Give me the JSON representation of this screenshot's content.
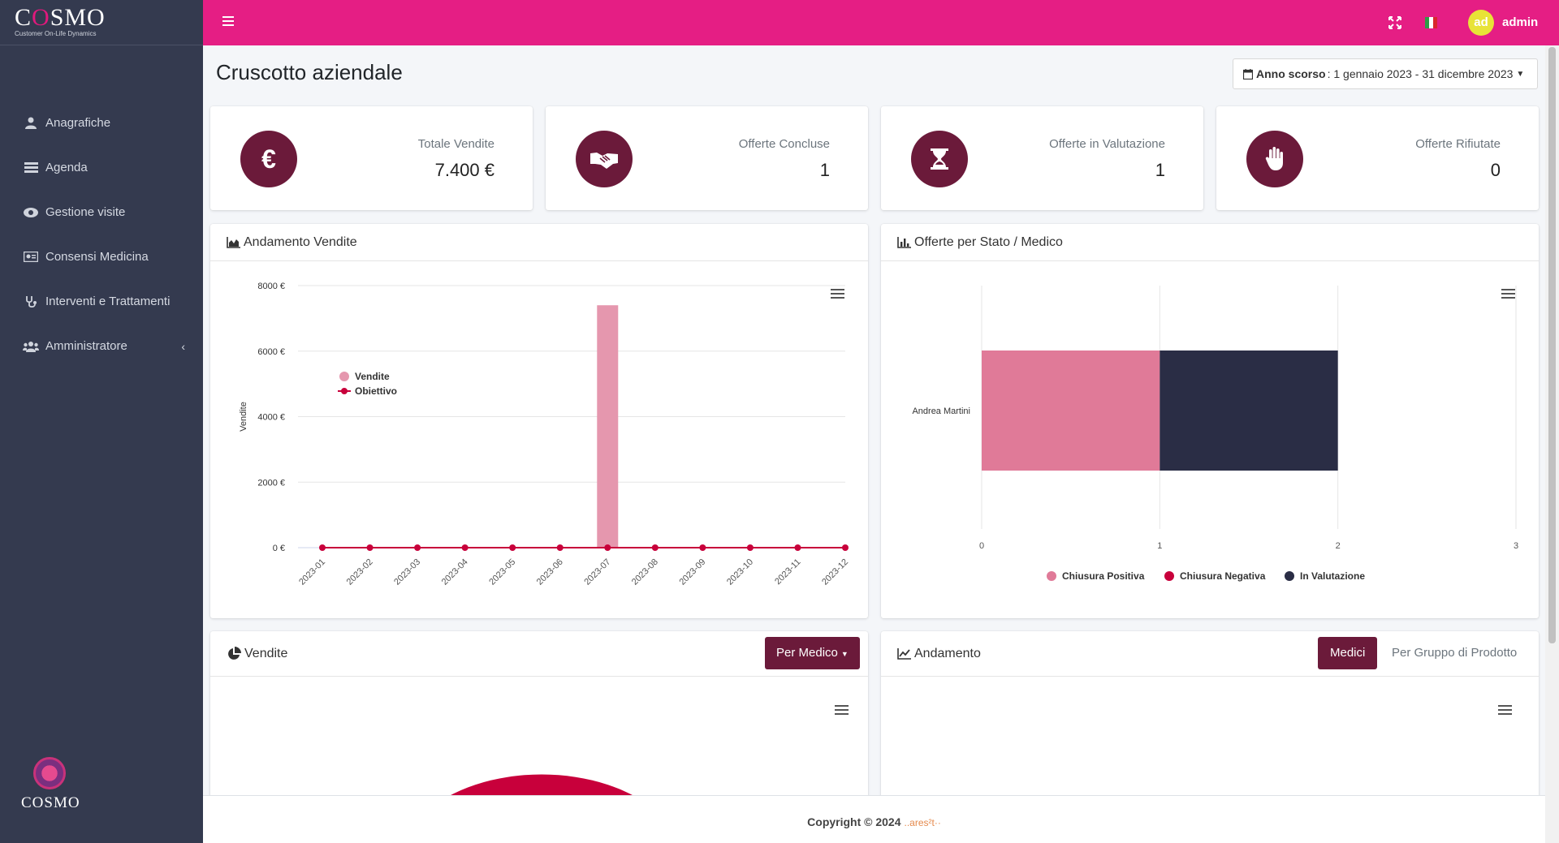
{
  "brand": {
    "name_left": "C",
    "name_o": "O",
    "name_right": "SMO",
    "subtitle": "Customer On-Life Dynamics",
    "footer_logo_text": "COSMO"
  },
  "sidebar": {
    "items": [
      {
        "label": "Anagrafiche",
        "icon": "user-icon"
      },
      {
        "label": "Agenda",
        "icon": "list-icon"
      },
      {
        "label": "Gestione visite",
        "icon": "eye-icon"
      },
      {
        "label": "Consensi Medicina",
        "icon": "id-card-icon"
      },
      {
        "label": "Interventi e Trattamenti",
        "icon": "stethoscope-icon"
      },
      {
        "label": "Amministratore",
        "icon": "users-icon"
      }
    ]
  },
  "header": {
    "avatar_initials": "ad",
    "user": "admin"
  },
  "page": {
    "title": "Cruscotto aziendale",
    "range_label": "Anno scorso",
    "range_value": ": 1 gennaio 2023 - 31 dicembre 2023"
  },
  "stats": [
    {
      "label": "Totale Vendite",
      "value": "7.400 €",
      "icon": "euro-icon"
    },
    {
      "label": "Offerte Concluse",
      "value": "1",
      "icon": "handshake-icon"
    },
    {
      "label": "Offerte in Valutazione",
      "value": "1",
      "icon": "hourglass-icon"
    },
    {
      "label": "Offerte Rifiutate",
      "value": "0",
      "icon": "hand-stop-icon"
    }
  ],
  "panels": {
    "sales_trend": "Andamento Vendite",
    "offers_by_status": "Offerte per Stato / Medico",
    "sales": "Vendite",
    "sales_dropdown": "Per Medico",
    "trend": "Andamento",
    "trend_tab_active": "Medici",
    "trend_tab_other": "Per Gruppo di Prodotto"
  },
  "colors": {
    "accent": "#e51e84",
    "dark": "#6b1a3a",
    "sidebar": "#343a4f",
    "bar_pink": "#e597ae",
    "line_red": "#c8003b",
    "positive": "#e07a98",
    "negative": "#c8003b",
    "evaluation": "#2a2d45"
  },
  "chart_data": [
    {
      "type": "bar",
      "title": "Andamento Vendite",
      "ylabel": "Vendite",
      "categories": [
        "2023-01",
        "2023-02",
        "2023-03",
        "2023-04",
        "2023-05",
        "2023-06",
        "2023-07",
        "2023-08",
        "2023-09",
        "2023-10",
        "2023-11",
        "2023-12"
      ],
      "series": [
        {
          "name": "Vendite",
          "kind": "bar",
          "values": [
            0,
            0,
            0,
            0,
            0,
            0,
            7400,
            0,
            0,
            0,
            0,
            0
          ]
        },
        {
          "name": "Obiettivo",
          "kind": "line",
          "values": [
            0,
            0,
            0,
            0,
            0,
            0,
            0,
            0,
            0,
            0,
            0,
            0
          ]
        }
      ],
      "yticks": [
        "0 €",
        "2000 €",
        "4000 €",
        "6000 €",
        "8000 €"
      ],
      "ylim": [
        0,
        8000
      ],
      "legend": "top-left",
      "grid": true
    },
    {
      "type": "bar",
      "orientation": "horizontal",
      "stacked": true,
      "title": "Offerte per Stato / Medico",
      "categories": [
        "Andrea Martini"
      ],
      "series": [
        {
          "name": "Chiusura Positiva",
          "values": [
            1
          ]
        },
        {
          "name": "Chiusura Negativa",
          "values": [
            0
          ]
        },
        {
          "name": "In Valutazione",
          "values": [
            1
          ]
        }
      ],
      "xticks": [
        "0",
        "1",
        "2",
        "3"
      ],
      "xlim": [
        0,
        3
      ],
      "legend": "bottom",
      "grid": true
    }
  ],
  "footer": {
    "copyright": "Copyright © 2024",
    "company": "..ares²t··"
  }
}
